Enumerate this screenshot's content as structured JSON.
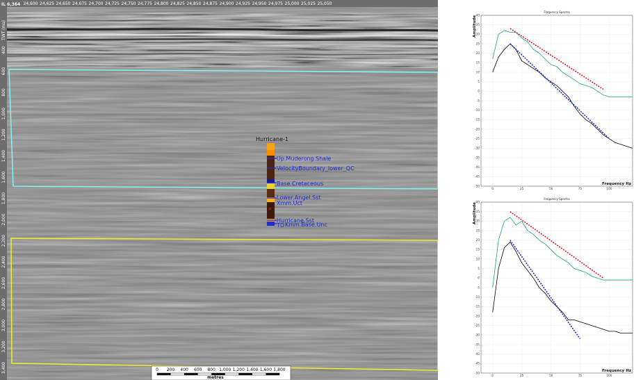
{
  "seismic": {
    "corner_label": "IL 6,364",
    "axis_title": "TWT (ms)",
    "top_ticks": [
      "24,600",
      "24,625",
      "24,650",
      "24,675",
      "24,700",
      "24,725",
      "24,750",
      "24,775",
      "24,800",
      "24,825",
      "24,850",
      "24,875",
      "24,900",
      "24,925",
      "24,950",
      "24,975",
      "25,000",
      "25,025",
      "25,050"
    ],
    "left_ticks": [
      "400",
      "600",
      "800",
      "1,000",
      "1,200",
      "1,400",
      "1,600",
      "1,800",
      "2,000",
      "2,200",
      "2,400",
      "2,600",
      "2,800",
      "3,000",
      "3,200",
      "3,400"
    ],
    "well": {
      "name": "Hurricane-1",
      "markers": [
        "Up.Muderong.Shale",
        "VelocityBoundary_lower_QC",
        "Base.Cretaceous",
        "Lower.Angel.Sst",
        "Xmm.Uct",
        "Hurricane.Sst",
        "TD",
        "Kmm.Base.Unc"
      ]
    },
    "colors": {
      "cyan_window": "#7ff5f5",
      "yellow_window": "#f0ef2a"
    }
  },
  "scalebar": {
    "ticks": [
      "0",
      "200",
      "400",
      "600",
      "800",
      "1,000",
      "1,200",
      "1,400",
      "1,600",
      "1,800"
    ],
    "unit": "metres"
  },
  "spectra": [
    {
      "title": "Frequency Spectra",
      "ylabel": "Amplitude",
      "xlabel": "Frequency Hz",
      "chart_data": {
        "type": "line",
        "xlim": [
          -10,
          120
        ],
        "ylim": [
          -50,
          40
        ],
        "x_ticks": [
          "0",
          "25",
          "50",
          "75",
          "100"
        ],
        "y_ticks": [
          "40",
          "35",
          "30",
          "25",
          "20",
          "15",
          "10",
          "5",
          "0",
          "-5",
          "-10",
          "-15",
          "-20",
          "-25",
          "-30",
          "-35",
          "-40",
          "-45",
          "-50"
        ],
        "series": [
          {
            "color": "#1aa37a",
            "style": "solid",
            "x": [
              0,
              5,
              10,
              15,
              20,
              25,
              30,
              35,
              40,
              45,
              50,
              55,
              60,
              65,
              70,
              75,
              80,
              85,
              90,
              95,
              100,
              105,
              110,
              115,
              120
            ],
            "y": [
              17,
              30,
              32,
              31,
              31,
              28,
              26,
              22,
              20,
              17,
              14,
              13,
              10,
              8,
              6,
              4,
              3,
              2,
              0,
              -2,
              -3,
              -3,
              -3,
              -3,
              -3
            ]
          },
          {
            "color": "#000000",
            "style": "solid",
            "x": [
              0,
              5,
              10,
              15,
              20,
              25,
              30,
              35,
              40,
              45,
              50,
              55,
              60,
              65,
              70,
              75,
              80,
              85,
              90,
              95,
              100,
              105,
              110,
              115,
              120
            ],
            "y": [
              10,
              18,
              22,
              25,
              22,
              16,
              14,
              12,
              10,
              7,
              5,
              3,
              0,
              -3,
              -8,
              -12,
              -15,
              -17,
              -20,
              -23,
              -25,
              -27,
              -28,
              -29,
              -30
            ]
          },
          {
            "color": "#dd1a1a",
            "style": "dashed",
            "x": [
              15,
              95
            ],
            "y": [
              33,
              1
            ]
          },
          {
            "color": "#1a2bd6",
            "style": "dashed",
            "x": [
              15,
              100
            ],
            "y": [
              25,
              -25
            ]
          }
        ]
      }
    },
    {
      "title": "Frequency Spectra",
      "ylabel": "Amplitude",
      "xlabel": "Frequency Hz",
      "chart_data": {
        "type": "line",
        "xlim": [
          -10,
          120
        ],
        "ylim": [
          -50,
          40
        ],
        "x_ticks": [
          "0",
          "25",
          "50",
          "75",
          "100"
        ],
        "y_ticks": [
          "40",
          "35",
          "30",
          "25",
          "20",
          "15",
          "10",
          "5",
          "0",
          "-5",
          "-10",
          "-15",
          "-20",
          "-25",
          "-30",
          "-35",
          "-40",
          "-45",
          "-50"
        ],
        "series": [
          {
            "color": "#1aa37a",
            "style": "solid",
            "x": [
              0,
              5,
              10,
              15,
              20,
              25,
              30,
              35,
              40,
              45,
              50,
              55,
              60,
              65,
              70,
              75,
              80,
              85,
              90,
              95,
              100,
              105,
              110,
              115,
              120
            ],
            "y": [
              -5,
              20,
              30,
              32,
              28,
              30,
              25,
              23,
              20,
              18,
              15,
              12,
              10,
              8,
              5,
              4,
              3,
              1,
              0,
              -1,
              -1,
              -1,
              -1,
              -1,
              -1
            ]
          },
          {
            "color": "#000000",
            "style": "solid",
            "x": [
              0,
              5,
              10,
              15,
              20,
              25,
              30,
              35,
              40,
              45,
              50,
              55,
              60,
              65,
              70,
              75,
              80,
              85,
              90,
              95,
              100,
              105,
              110,
              115,
              120
            ],
            "y": [
              -18,
              5,
              16,
              19,
              14,
              8,
              4,
              0,
              -5,
              -8,
              -12,
              -15,
              -18,
              -22,
              -22,
              -23,
              -24,
              -25,
              -26,
              -27,
              -28,
              -28,
              -29,
              -29,
              -29
            ]
          },
          {
            "color": "#dd1a1a",
            "style": "dashed",
            "x": [
              15,
              95
            ],
            "y": [
              35,
              0
            ]
          },
          {
            "color": "#1a2bd6",
            "style": "dashed",
            "x": [
              15,
              75
            ],
            "y": [
              20,
              -32
            ]
          }
        ]
      }
    }
  ]
}
